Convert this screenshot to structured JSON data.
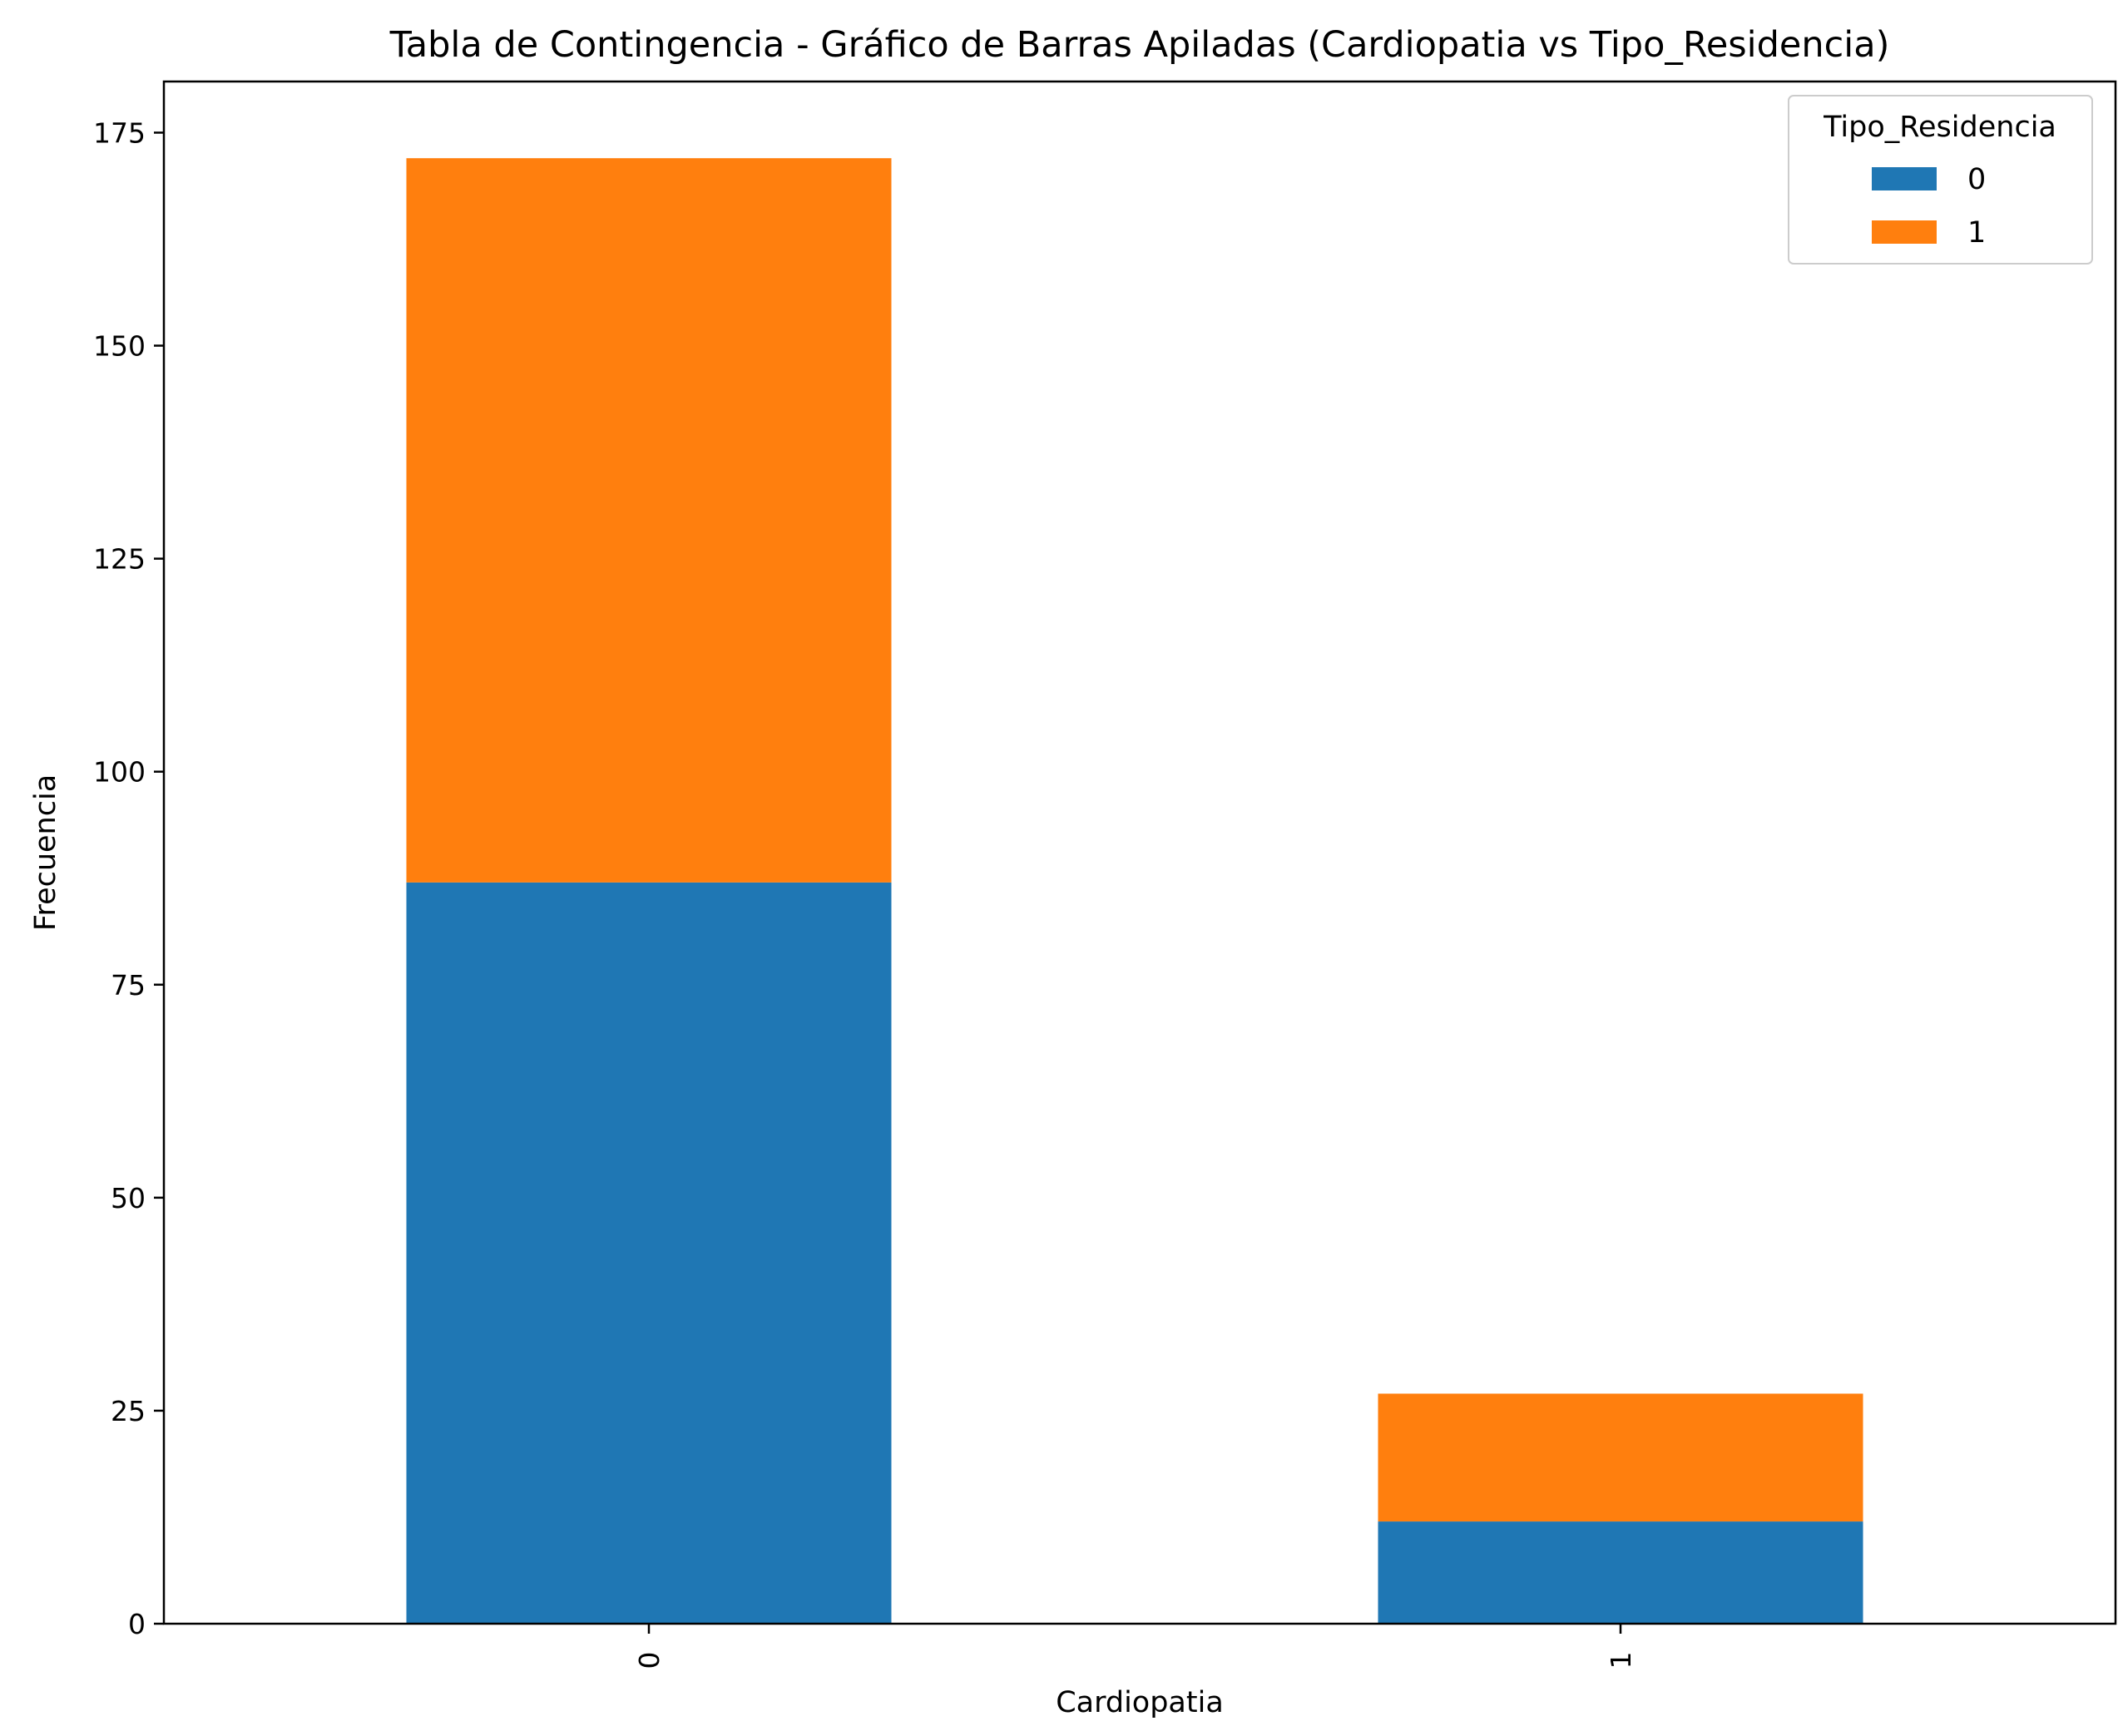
{
  "chart_data": {
    "type": "bar",
    "stacked": true,
    "title": "Tabla de Contingencia - Gráfico de Barras Apiladas (Cardiopatia vs Tipo_Residencia)",
    "xlabel": "Cardiopatia",
    "ylabel": "Frecuencia",
    "categories": [
      "0",
      "1"
    ],
    "ylim": [
      0,
      181
    ],
    "yticks": [
      0,
      25,
      50,
      75,
      100,
      125,
      150,
      175
    ],
    "legend_title": "Tipo_Residencia",
    "legend_position": "top-right",
    "grid": false,
    "series": [
      {
        "name": "0",
        "color": "#1f77b4",
        "values": [
          87,
          12
        ]
      },
      {
        "name": "1",
        "color": "#ff7f0e",
        "values": [
          85,
          15
        ]
      }
    ]
  }
}
